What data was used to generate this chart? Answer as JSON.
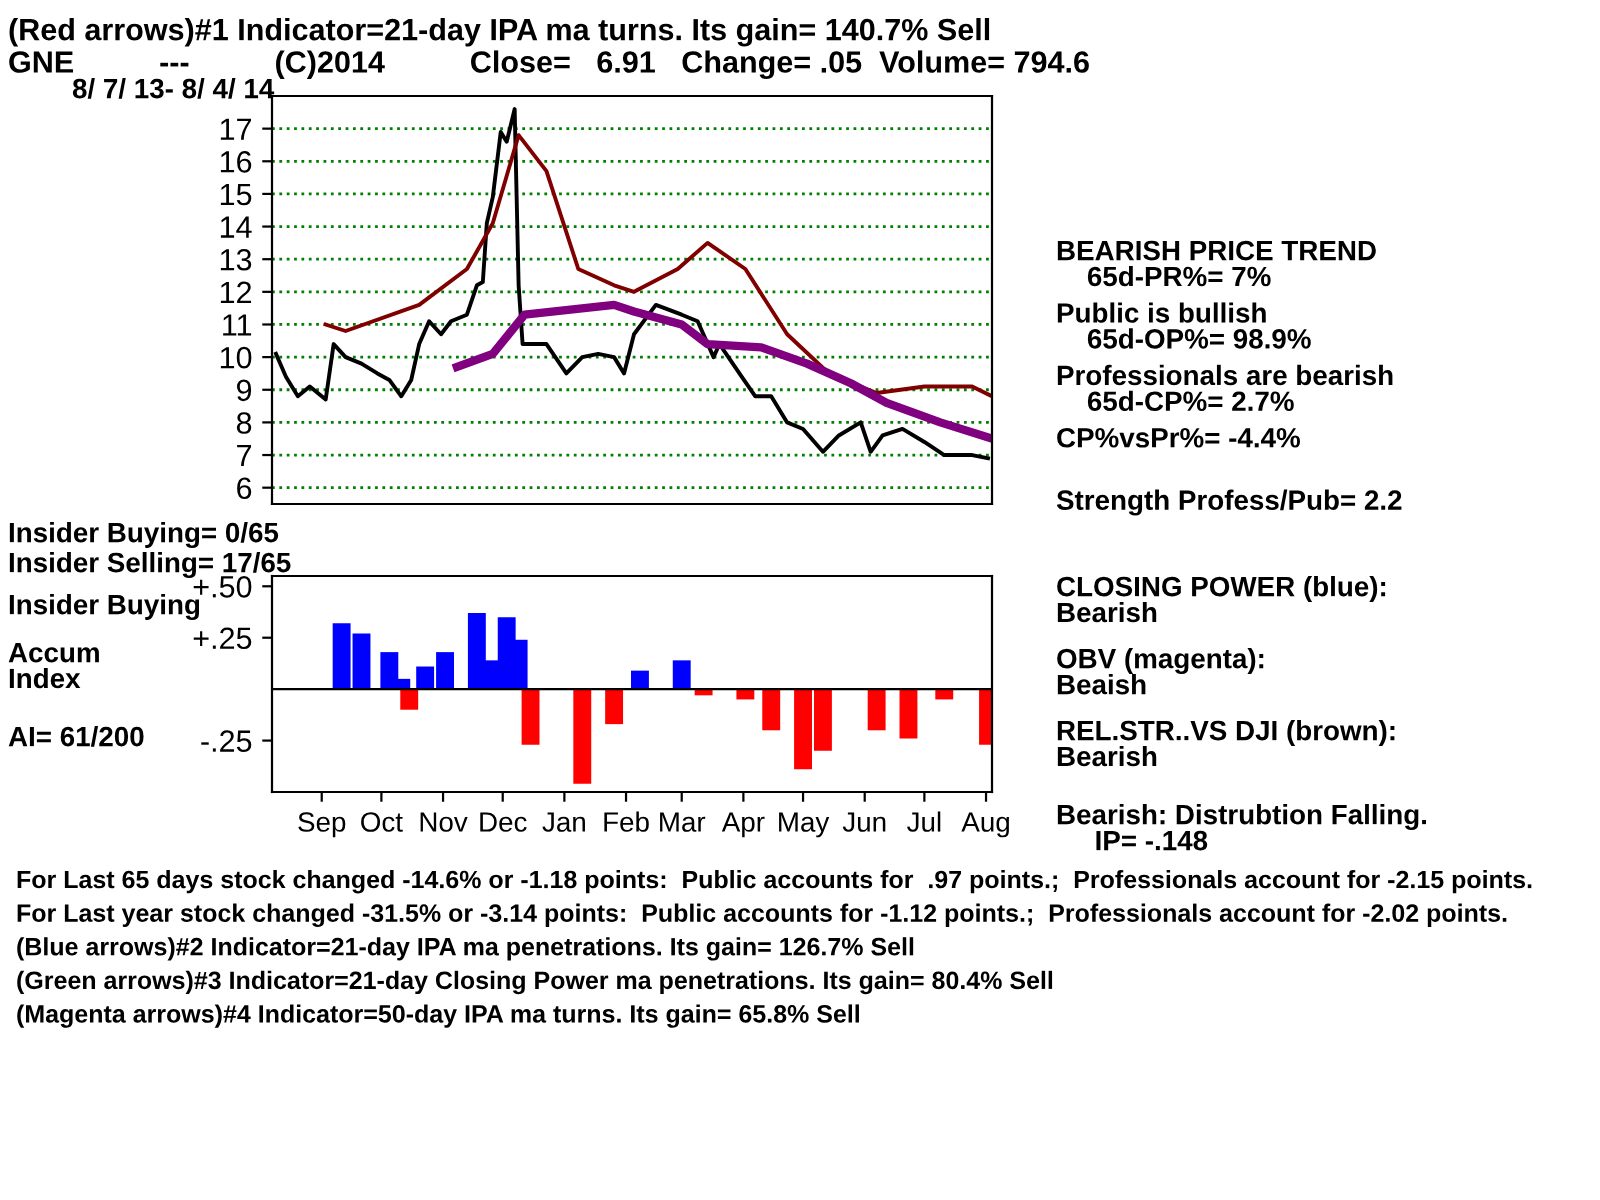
{
  "chart_data": [
    {
      "type": "line",
      "title": "(Red arrows)#1 Indicator=21-day IPA ma turns. Its gain= 140.7% Sell",
      "subtitle": "GNE          ---          (C)2014          Close=   6.91   Change= .05  Volume= 794.6",
      "annotations": [
        "8/ 7/ 13- 8/ 4/ 14",
        "BEARISH PRICE TREND\n    65d-PR%= 7%",
        "Public is bullish\n    65d-OP%= 98.9%",
        "Professionals are bearish\n    65d-CP%= 2.7%",
        "CP%vsPr%= -4.4%",
        "Strength Profess/Pub= 2.2",
        "CLOSING POWER (blue):\nBearish",
        "OBV (magenta):\nBeaish",
        "REL.STR..VS DJI (brown):\nBearish",
        "Bearish: Distrubtion Falling.\n     IP= -.148",
        "For Last 65 days stock changed -14.6% or -1.18 points:  Public accounts for  .97 points.;  Professionals account for -2.15 points.",
        "For Last year stock changed -31.5% or -3.14 points:  Public accounts for -1.12 points.;  Professionals account for -2.02 points.",
        "(Blue arrows)#2 Indicator=21-day IPA ma penetrations. Its gain= 126.7% Sell",
        "(Green arrows)#3 Indicator=21-day Closing Power ma penetrations. Its gain= 80.4% Sell",
        "(Magenta arrows)#4 Indicator=50-day IPA ma turns. Its gain= 65.8% Sell"
      ],
      "xlim": [
        "2013-08-07",
        "2014-08-04"
      ],
      "ylim": [
        5.5,
        18
      ],
      "yticks": [
        6,
        7,
        8,
        9,
        10,
        11,
        12,
        13,
        14,
        15,
        16,
        17
      ],
      "grid": "y",
      "tick_labels": "y",
      "line_style": "solid",
      "marker": "none",
      "series": [
        {
          "color": "#000000",
          "x": [
            "2013-08-09",
            "2013-08-14",
            "2013-08-20",
            "2013-08-26",
            "2013-09-03",
            "2013-09-07",
            "2013-09-13",
            "2013-09-21",
            "2013-09-29",
            "2013-10-05",
            "2013-10-11",
            "2013-10-16",
            "2013-10-20",
            "2013-10-25",
            "2013-10-31",
            "2013-11-05",
            "2013-11-13",
            "2013-11-18",
            "2013-11-21",
            "2013-11-23",
            "2013-11-26",
            "2013-11-30",
            "2013-12-03",
            "2013-12-07",
            "2013-12-09",
            "2013-12-11",
            "2013-12-15",
            "2013-12-23",
            "2014-01-02",
            "2014-01-10",
            "2014-01-18",
            "2014-01-26",
            "2014-01-31",
            "2014-02-05",
            "2014-02-16",
            "2014-03-01",
            "2014-03-09",
            "2014-03-17",
            "2014-03-20",
            "2014-03-30",
            "2014-04-07",
            "2014-04-15",
            "2014-04-23",
            "2014-05-01",
            "2014-05-11",
            "2014-05-19",
            "2014-05-30",
            "2014-06-04",
            "2014-06-10",
            "2014-06-20",
            "2014-07-01",
            "2014-07-11",
            "2014-07-25",
            "2014-08-02"
          ],
          "values": [
            10.1,
            9.4,
            8.8,
            9.1,
            8.7,
            10.4,
            10.0,
            9.8,
            9.5,
            9.3,
            8.8,
            9.3,
            10.4,
            11.1,
            10.7,
            11.1,
            11.3,
            12.2,
            12.3,
            14.1,
            14.9,
            16.9,
            16.6,
            17.6,
            12.2,
            10.4,
            10.4,
            10.4,
            9.5,
            10.0,
            10.1,
            10.0,
            9.5,
            10.7,
            11.6,
            11.3,
            11.1,
            10.0,
            10.4,
            9.5,
            8.8,
            8.8,
            8.0,
            7.8,
            7.1,
            7.6,
            8.0,
            7.1,
            7.6,
            7.8,
            7.4,
            7.0,
            7.0,
            6.9
          ]
        },
        {
          "color": "#800000",
          "x": [
            "2013-09-03",
            "2013-09-13",
            "2013-10-20",
            "2013-11-13",
            "2013-11-26",
            "2013-12-09",
            "2013-12-23",
            "2014-01-08",
            "2014-01-26",
            "2014-02-05",
            "2014-02-27",
            "2014-03-14",
            "2014-04-02",
            "2014-04-23",
            "2014-05-14",
            "2014-06-07",
            "2014-07-01",
            "2014-07-25",
            "2014-08-04"
          ],
          "values": [
            11.0,
            10.8,
            11.6,
            12.7,
            14.1,
            16.8,
            15.7,
            12.7,
            12.2,
            12.0,
            12.7,
            13.5,
            12.7,
            10.7,
            9.5,
            8.9,
            9.1,
            9.1,
            8.8
          ]
        },
        {
          "color": "#800080",
          "x": [
            "2013-11-08",
            "2013-11-26",
            "2013-12-12",
            "2014-01-26",
            "2014-02-05",
            "2014-03-01",
            "2014-03-14",
            "2014-04-10",
            "2014-05-03",
            "2014-05-25",
            "2014-06-12",
            "2014-07-09",
            "2014-08-04"
          ],
          "values": [
            9.7,
            10.1,
            11.3,
            11.6,
            11.4,
            11.0,
            10.4,
            10.3,
            9.8,
            9.2,
            8.6,
            8.0,
            7.5
          ]
        }
      ]
    },
    {
      "type": "bar",
      "annotations": [
        "Insider Buying= 0/65",
        "Insider Selling= 17/65",
        "Insider Buying",
        "Accum\nIndex",
        "AI= 61/200"
      ],
      "x": [
        "2013-09-11",
        "2013-09-21",
        "2013-10-05",
        "2013-10-11",
        "2013-10-15",
        "2013-10-23",
        "2013-11-02",
        "2013-11-18",
        "2013-11-26",
        "2013-12-03",
        "2013-12-09",
        "2013-12-15",
        "2014-01-10",
        "2014-01-26",
        "2014-02-08",
        "2014-03-01",
        "2014-03-12",
        "2014-04-02",
        "2014-04-15",
        "2014-05-01",
        "2014-05-11",
        "2014-05-30",
        "2014-06-07",
        "2014-06-23",
        "2014-07-11",
        "2014-08-02"
      ],
      "values": [
        0.32,
        0.27,
        0.18,
        0.05,
        -0.1,
        0.11,
        0.18,
        0.37,
        0.14,
        0.35,
        0.24,
        -0.27,
        -0.46,
        -0.17,
        0.09,
        0.14,
        -0.03,
        -0.05,
        -0.2,
        -0.39,
        -0.3,
        0,
        -0.2,
        -0.24,
        -0.05,
        -0.27
      ],
      "colors": [
        "#0000ff",
        "#0000ff",
        "#0000ff",
        "#0000ff",
        "#ff0000",
        "#0000ff",
        "#0000ff",
        "#0000ff",
        "#0000ff",
        "#0000ff",
        "#0000ff",
        "#ff0000",
        "#ff0000",
        "#ff0000",
        "#0000ff",
        "#0000ff",
        "#ff0000",
        "#ff0000",
        "#ff0000",
        "#ff0000",
        "#ff0000",
        "#ff0000",
        "#ff0000",
        "#ff0000",
        "#ff0000",
        "#ff0000"
      ],
      "xlim": [
        "2013-08-07",
        "2014-08-04"
      ],
      "xticks": [
        {
          "value": "2013-09-01",
          "label": "Sep"
        },
        {
          "value": "2013-10-01",
          "label": "Oct"
        },
        {
          "value": "2013-11-01",
          "label": "Nov"
        },
        {
          "value": "2013-12-01",
          "label": "Dec"
        },
        {
          "value": "2014-01-01",
          "label": "Jan"
        },
        {
          "value": "2014-02-01",
          "label": "Feb"
        },
        {
          "value": "2014-03-01",
          "label": "Mar"
        },
        {
          "value": "2014-04-01",
          "label": "Apr"
        },
        {
          "value": "2014-05-01",
          "label": "May"
        },
        {
          "value": "2014-06-01",
          "label": "Jun"
        },
        {
          "value": "2014-07-01",
          "label": "Jul"
        },
        {
          "value": "2014-08-01",
          "label": "Aug"
        }
      ],
      "ylim": [
        -0.5,
        0.55
      ],
      "yticks": [
        {
          "value": 0.5,
          "label": "+.50"
        },
        {
          "value": 0.25,
          "label": "+.25"
        },
        {
          "value": -0.25,
          "label": "-.25"
        }
      ],
      "ref_lines": [
        {
          "axis": "y",
          "value": 0
        }
      ],
      "grid": false
    }
  ]
}
